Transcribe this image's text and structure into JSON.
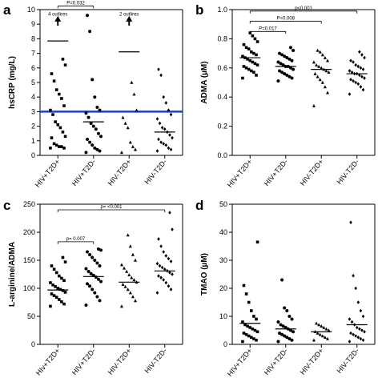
{
  "chart_data": [
    {
      "letter": "a",
      "type": "scatter",
      "ylabel": "hsCRP (mg/L)",
      "categories": [
        "HIV+T2D+",
        "HIV+T2D-",
        "HIV-T2D+",
        "HIV-T2D-"
      ],
      "ylim": [
        0,
        10
      ],
      "yticks": [
        0,
        1,
        2,
        3,
        4,
        5,
        6,
        7,
        8,
        9,
        10
      ],
      "reference_line": {
        "y": 3,
        "color": "#1f3fbf"
      },
      "medians": [
        7.85,
        2.3,
        7.1,
        1.6
      ],
      "points": [
        [
          0.5,
          0.5,
          0.6,
          0.6,
          0.7,
          0.8,
          1.2,
          1.3,
          1.6,
          1.9,
          2.1,
          2.3,
          2.8,
          3.1,
          3.4,
          3.9,
          4.2,
          4.5,
          5.1,
          5.6,
          6.2,
          6.6
        ],
        [
          0.2,
          0.3,
          0.4,
          0.5,
          0.7,
          0.9,
          1.1,
          1.3,
          1.5,
          1.8,
          2.0,
          2.2,
          2.6,
          2.9,
          3.1,
          3.3,
          4.0,
          5.2,
          8.5,
          9.6
        ],
        [
          0.2,
          0.4,
          0.6,
          0.9,
          1.9,
          2.2,
          2.6,
          3.1,
          4.2,
          5.0
        ],
        [
          0.3,
          0.4,
          0.5,
          0.7,
          0.8,
          0.9,
          1.1,
          1.2,
          1.4,
          1.6,
          1.8,
          1.9,
          2.2,
          2.5,
          2.8,
          3.1,
          3.6,
          4.0,
          5.5,
          5.9
        ]
      ],
      "comparisons": [
        {
          "from": 0,
          "to": 1,
          "label": "P=0.032",
          "y": 10.25
        },
        {
          "from": 0,
          "to": 3,
          "label": "p=0.002",
          "y": 10.85
        }
      ],
      "annotations": [
        {
          "group": 0,
          "text": "4 outlires",
          "y": 9.6,
          "arrow_from": 8.9,
          "arrow_to": 9.4
        },
        {
          "group": 2,
          "text": "2 outlires",
          "y": 9.6,
          "arrow_from": 8.9,
          "arrow_to": 9.4
        }
      ]
    },
    {
      "letter": "b",
      "type": "scatter",
      "ylabel": "ADMA (µM)",
      "categories": [
        "HIV+T2D+",
        "HIV+T2D-",
        "HIV-T2D+",
        "HIV-T2D-"
      ],
      "ylim": [
        0,
        1.0
      ],
      "yticks": [
        0.0,
        0.2,
        0.4,
        0.6,
        0.8,
        1.0
      ],
      "medians": [
        0.67,
        0.61,
        0.59,
        0.56
      ],
      "points": [
        [
          0.53,
          0.55,
          0.57,
          0.58,
          0.59,
          0.6,
          0.61,
          0.62,
          0.63,
          0.64,
          0.65,
          0.66,
          0.67,
          0.68,
          0.69,
          0.7,
          0.71,
          0.73,
          0.74,
          0.76,
          0.78,
          0.8,
          0.82,
          0.84
        ],
        [
          0.51,
          0.53,
          0.54,
          0.55,
          0.56,
          0.57,
          0.58,
          0.59,
          0.6,
          0.61,
          0.61,
          0.62,
          0.63,
          0.64,
          0.65,
          0.66,
          0.67,
          0.68,
          0.69,
          0.7,
          0.72,
          0.74
        ],
        [
          0.34,
          0.43,
          0.47,
          0.5,
          0.52,
          0.54,
          0.56,
          0.57,
          0.58,
          0.59,
          0.6,
          0.61,
          0.62,
          0.64,
          0.65,
          0.67,
          0.69,
          0.71,
          0.72
        ],
        [
          0.42,
          0.45,
          0.47,
          0.49,
          0.5,
          0.51,
          0.52,
          0.53,
          0.54,
          0.55,
          0.56,
          0.56,
          0.57,
          0.58,
          0.59,
          0.6,
          0.61,
          0.62,
          0.64,
          0.65,
          0.67,
          0.69,
          0.71
        ]
      ],
      "comparisons": [
        {
          "from": 0,
          "to": 1,
          "label": "P=0.017",
          "y": 0.85
        },
        {
          "from": 0,
          "to": 2,
          "label": "P=0.008",
          "y": 0.92
        },
        {
          "from": 0,
          "to": 3,
          "label": "p<0.001",
          "y": 0.99
        }
      ]
    },
    {
      "letter": "c",
      "type": "scatter",
      "ylabel": "L-arginine/ADMA",
      "categories": [
        "HIv+T2D+",
        "HIV+T2D-",
        "HIV-T2D+",
        "HIV-T2D-"
      ],
      "ylim": [
        0,
        250
      ],
      "yticks": [
        0,
        50,
        100,
        150,
        200,
        250
      ],
      "medians": [
        97,
        121,
        111,
        131
      ],
      "points": [
        [
          68,
          72,
          76,
          80,
          84,
          87,
          90,
          93,
          96,
          98,
          100,
          103,
          106,
          110,
          114,
          118,
          122,
          128,
          134,
          140,
          147,
          155
        ],
        [
          70,
          78,
          85,
          92,
          98,
          104,
          108,
          112,
          116,
          120,
          123,
          126,
          130,
          135,
          140,
          145,
          150,
          155,
          160,
          165,
          168,
          170
        ],
        [
          68,
          78,
          85,
          92,
          98,
          103,
          107,
          111,
          115,
          119,
          124,
          130,
          136,
          142,
          150,
          160,
          175,
          195
        ],
        [
          92,
          98,
          104,
          110,
          115,
          119,
          122,
          125,
          128,
          131,
          134,
          137,
          140,
          144,
          148,
          153,
          158,
          165,
          175,
          188,
          205,
          235
        ]
      ],
      "comparisons": [
        {
          "from": 0,
          "to": 1,
          "label": "p= 0.007",
          "y": 183
        },
        {
          "from": 0,
          "to": 3,
          "label": "p= <0.001",
          "y": 240
        }
      ]
    },
    {
      "letter": "d",
      "type": "scatter",
      "ylabel": "TMAO (µM)",
      "categories": [
        "HIV+T2D+",
        "HIV+T2D-",
        "HIV-T2D+",
        "HIV-T2D-"
      ],
      "ylim": [
        0,
        50
      ],
      "yticks": [
        0,
        10,
        20,
        30,
        40,
        50
      ],
      "medians": [
        7.5,
        5.5,
        4.5,
        7.0
      ],
      "points": [
        [
          1.0,
          1.5,
          2.0,
          2.5,
          3.0,
          3.5,
          4.0,
          4.5,
          5.0,
          5.5,
          6.0,
          6.5,
          7.0,
          8.0,
          9.0,
          10.0,
          12.0,
          15.0,
          18.0,
          21.0,
          36.5
        ],
        [
          1.0,
          1.5,
          2.0,
          2.5,
          3.0,
          3.5,
          4.0,
          4.5,
          5.0,
          5.5,
          6.0,
          6.5,
          7.0,
          8.0,
          9.0,
          10.0,
          12.0,
          13.0,
          23.0
        ],
        [
          1.5,
          2.0,
          2.5,
          3.0,
          3.5,
          4.0,
          4.5,
          5.0,
          5.5,
          6.0,
          6.5,
          7.0,
          7.5
        ],
        [
          1.0,
          1.5,
          2.0,
          2.5,
          3.0,
          3.5,
          4.0,
          4.5,
          5.0,
          5.5,
          6.0,
          7.0,
          8.0,
          9.0,
          10.0,
          12.0,
          15.0,
          20.0,
          24.5,
          43.5
        ]
      ],
      "comparisons": []
    }
  ]
}
